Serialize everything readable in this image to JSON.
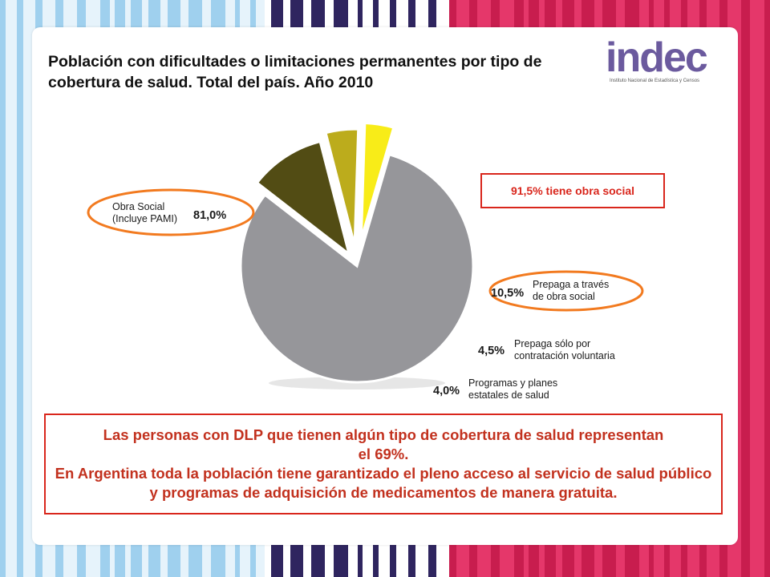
{
  "title": "Población con dificultades o limitaciones permanentes por tipo de cobertura de salud. Total del país. Año 2010",
  "logo": {
    "word": "indec",
    "subtitle": "Instituto Nacional de Estadística y Censos"
  },
  "callout": "91,5% tiene obra social",
  "chart_data": {
    "type": "pie",
    "title": "",
    "slices": [
      {
        "label_lines": [
          "Obra Social",
          "(Incluye PAMI)"
        ],
        "value_label": "81,0%",
        "value": 81.0,
        "color": "#96969a",
        "highlighted": true
      },
      {
        "label_lines": [
          "Prepaga a través",
          "de obra social"
        ],
        "value_label": "10,5%",
        "value": 10.5,
        "color": "#524c14",
        "highlighted": true
      },
      {
        "label_lines": [
          "Prepaga sólo por",
          "contratación voluntaria"
        ],
        "value_label": "4,5%",
        "value": 4.5,
        "color": "#bcac1c",
        "highlighted": false
      },
      {
        "label_lines": [
          "Programas y planes",
          "estatales de salud"
        ],
        "value_label": "4,0%",
        "value": 4.0,
        "color": "#f8ec18",
        "highlighted": false
      }
    ],
    "highlight_color": "#f27a1f",
    "callout_color": "#d9261c"
  },
  "note": {
    "line1": "Las personas con DLP que tienen algún tipo de cobertura de salud representan el 69%.",
    "line2": "En Argentina toda la población tiene garantizado el pleno acceso al servicio de salud público y programas de adquisición de medicamentos de manera gratuita."
  },
  "colors": {
    "accent_red": "#d9261c",
    "note_text": "#c2311e",
    "logo": "#6b5a9e"
  }
}
